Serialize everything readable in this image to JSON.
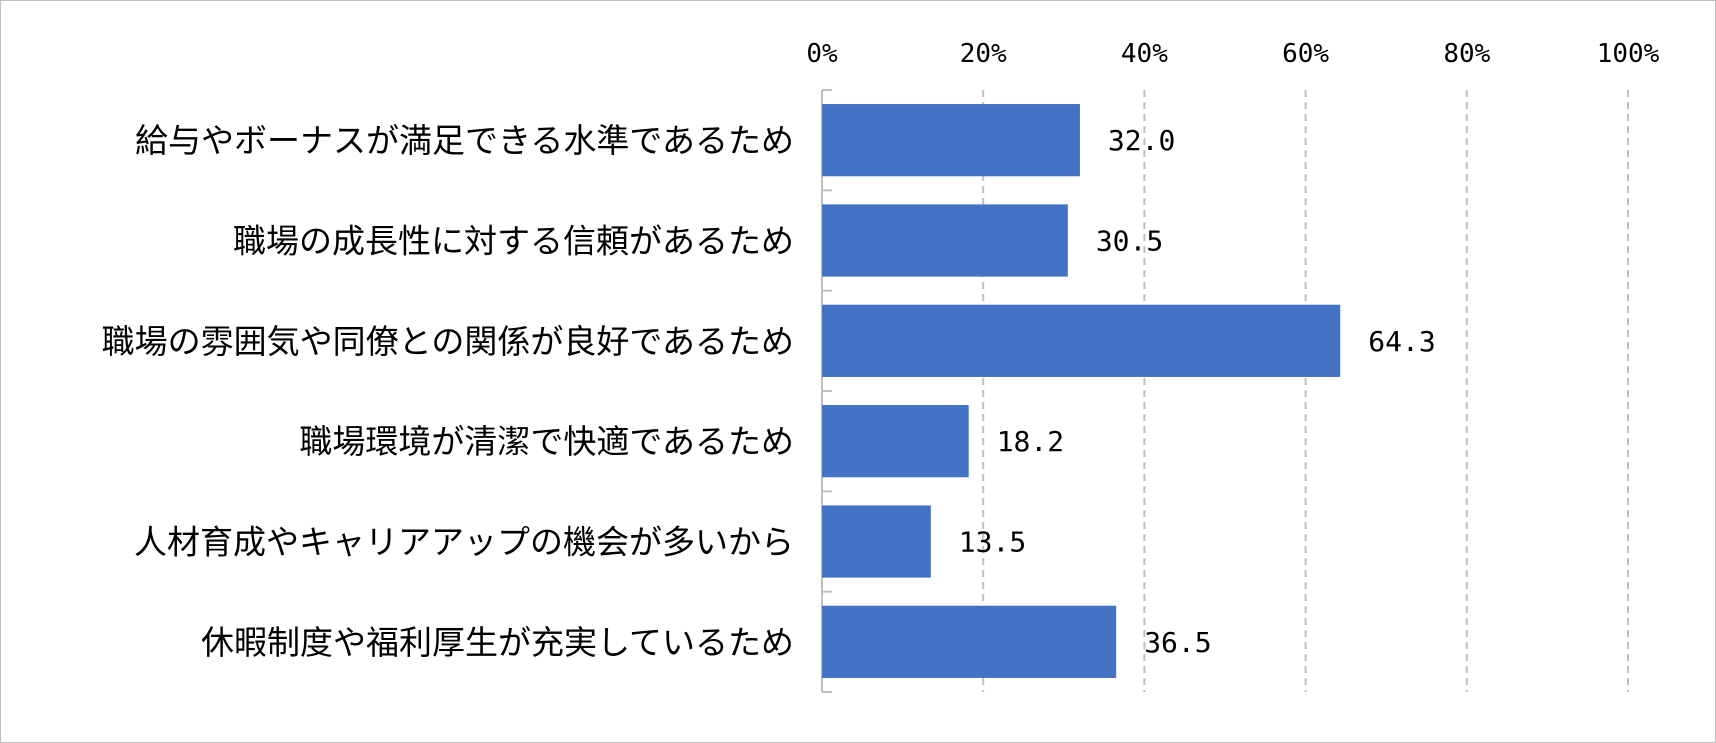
{
  "chart_data": {
    "type": "bar",
    "orientation": "horizontal",
    "categories": [
      "給与やボーナスが満足できる水準であるため",
      "職場の成長性に対する信頼があるため",
      "職場の雰囲気や同僚との関係が良好であるため",
      "職場環境が清潔で快適であるため",
      "人材育成やキャリアアップの機会が多いから",
      "休暇制度や福利厚生が充実しているため"
    ],
    "values": [
      32.0,
      30.5,
      64.3,
      18.2,
      13.5,
      36.5
    ],
    "value_labels": [
      "32.0",
      "30.5",
      "64.3",
      "18.2",
      "13.5",
      "36.5"
    ],
    "xlim": [
      0,
      100
    ],
    "xticks": [
      0,
      20,
      40,
      60,
      80,
      100
    ],
    "xtick_labels": [
      "0%",
      "20%",
      "40%",
      "60%",
      "80%",
      "100%"
    ],
    "x_axis_position": "top",
    "grid": true,
    "bar_color": "#4472C4",
    "grid_color": "#bfbfbf"
  }
}
